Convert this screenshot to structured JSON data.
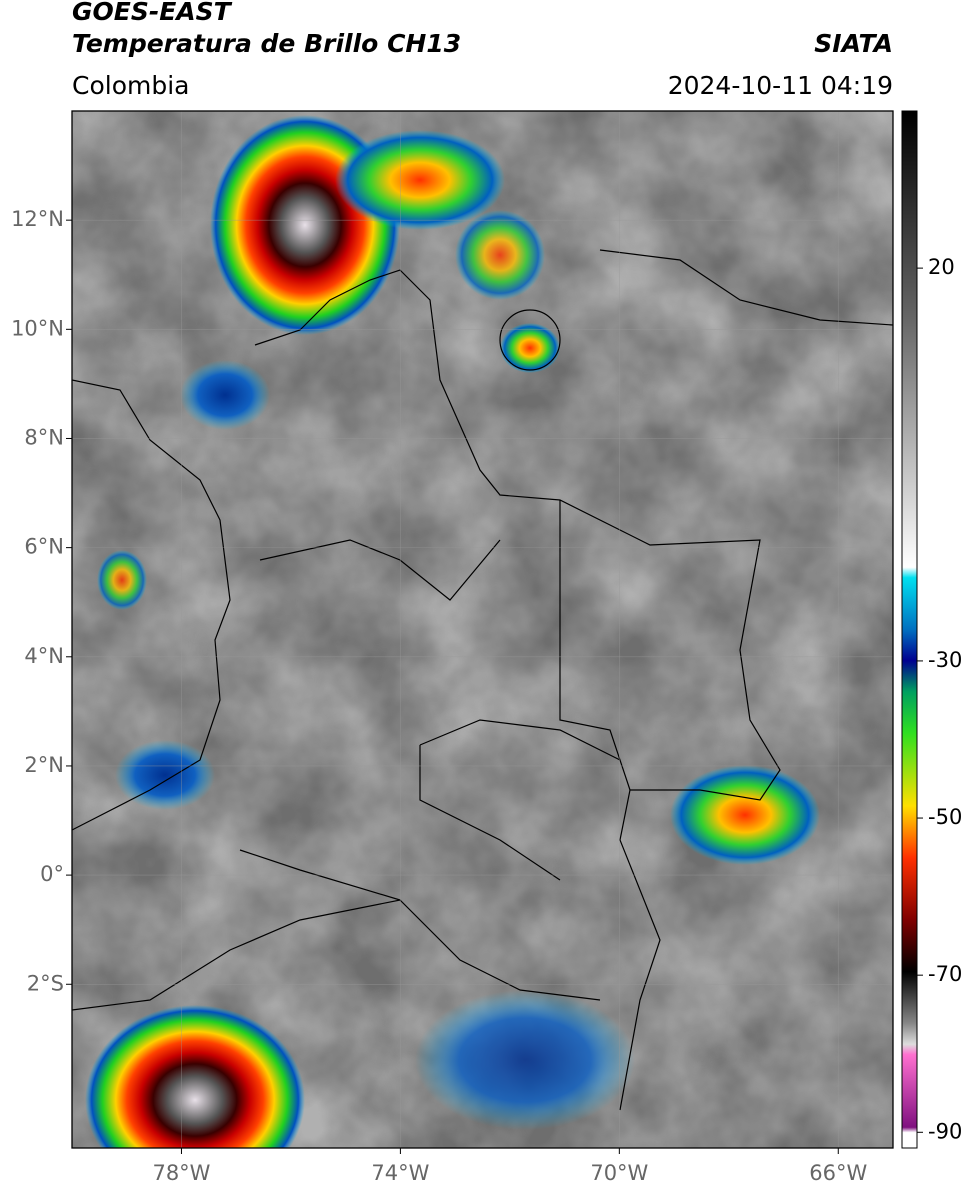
{
  "header": {
    "title": "GOES-EAST",
    "subtitle": "Temperatura de Brillo CH13",
    "region": "Colombia",
    "source": "SIATA",
    "datetime": "2024-10-11 04:19"
  },
  "map": {
    "xlim": [
      -80,
      -65
    ],
    "ylim": [
      -5,
      14
    ],
    "xticks": [
      {
        "value": -78,
        "label": "78°W"
      },
      {
        "value": -74,
        "label": "74°W"
      },
      {
        "value": -70,
        "label": "70°W"
      },
      {
        "value": -66,
        "label": "66°W"
      }
    ],
    "yticks": [
      {
        "value": 12,
        "label": "12°N"
      },
      {
        "value": 10,
        "label": "10°N"
      },
      {
        "value": 8,
        "label": "8°N"
      },
      {
        "value": 6,
        "label": "6°N"
      },
      {
        "value": 4,
        "label": "4°N"
      },
      {
        "value": 2,
        "label": "2°N"
      },
      {
        "value": 0,
        "label": "0°"
      },
      {
        "value": -2,
        "label": "2°S"
      }
    ],
    "grid": true
  },
  "colorbar": {
    "lim": [
      -92,
      40
    ],
    "ticks": [
      20,
      -30,
      -50,
      -70,
      -90
    ]
  }
}
